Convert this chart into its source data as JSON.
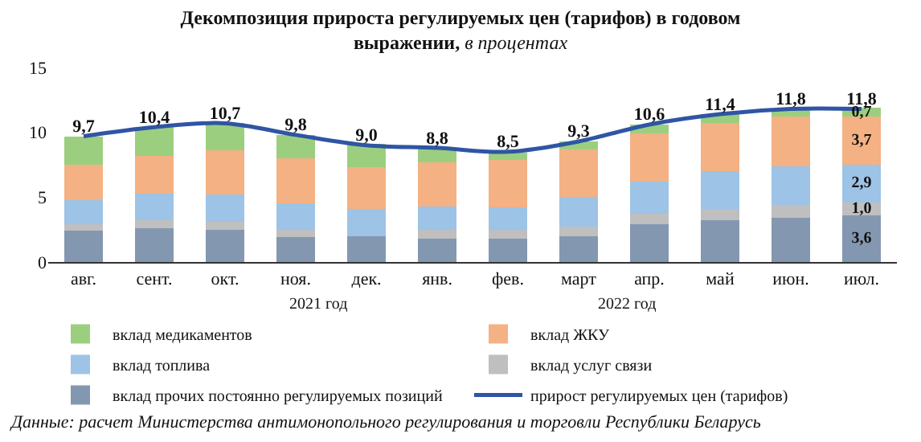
{
  "chart_data": {
    "type": "bar",
    "stacked": true,
    "title": "Декомпозиция прироста регулируемых цен (тарифов) в годовом выражении,",
    "subtitle": "в процентах",
    "categories": [
      "авг.",
      "сент.",
      "окт.",
      "ноя.",
      "дек.",
      "янв.",
      "фев.",
      "март",
      "апр.",
      "май",
      "июн.",
      "июл."
    ],
    "series": [
      {
        "name": "вклад прочих постоянно регулируемых позиций",
        "color": "#8497b0",
        "values": [
          2.4,
          2.6,
          2.5,
          1.9,
          2.0,
          1.8,
          1.8,
          2.0,
          2.9,
          3.2,
          3.4,
          3.6
        ],
        "value_labels": [
          null,
          null,
          null,
          null,
          null,
          null,
          null,
          null,
          null,
          null,
          null,
          "3,6"
        ]
      },
      {
        "name": "вклад услуг связи",
        "color": "#bfbfbf",
        "values": [
          0.5,
          0.6,
          0.6,
          0.6,
          null,
          0.7,
          0.7,
          0.7,
          0.8,
          0.9,
          1.0,
          1.0
        ],
        "value_labels": [
          null,
          null,
          null,
          null,
          null,
          null,
          null,
          null,
          null,
          null,
          null,
          "1,0"
        ]
      },
      {
        "name": "вклад топлива",
        "color": "#9dc3e6",
        "values": [
          1.9,
          2.1,
          2.1,
          2.0,
          2.1,
          1.8,
          1.7,
          2.3,
          2.5,
          2.9,
          3.0,
          2.9
        ],
        "value_labels": [
          null,
          null,
          null,
          null,
          null,
          null,
          null,
          null,
          null,
          null,
          null,
          "2,9"
        ]
      },
      {
        "name": "вклад ЖКУ",
        "color": "#f4b183",
        "values": [
          2.7,
          2.9,
          3.4,
          3.5,
          3.2,
          3.4,
          3.7,
          3.7,
          3.7,
          3.7,
          3.8,
          3.7
        ],
        "value_labels": [
          null,
          null,
          null,
          null,
          null,
          null,
          null,
          null,
          null,
          null,
          null,
          "3,7"
        ]
      },
      {
        "name": "вклад медикаментов",
        "color": "#9bcf7f",
        "values": [
          2.2,
          2.2,
          2.1,
          1.8,
          1.8,
          1.1,
          0.5,
          0.6,
          0.7,
          0.7,
          0.6,
          0.7
        ],
        "value_labels": [
          null,
          null,
          null,
          null,
          null,
          null,
          null,
          null,
          null,
          null,
          null,
          "0,7"
        ]
      },
      {
        "name": "прирост регулируемых цен (тарифов)",
        "type": "line",
        "color": "#2f55a4",
        "values": [
          9.7,
          10.4,
          10.7,
          9.8,
          9.0,
          8.8,
          8.5,
          9.3,
          10.6,
          11.4,
          11.8,
          11.8
        ],
        "value_labels": [
          "9,7",
          "10,4",
          "10,7",
          "9,8",
          "9,0",
          "8,8",
          "8,5",
          "9,3",
          "10,6",
          "11,4",
          "11,8",
          "11,8"
        ]
      }
    ],
    "ylim": [
      0,
      15
    ],
    "yticks": [
      0,
      5,
      10,
      15
    ],
    "legend": "bottom",
    "annotations": [
      "2021 год",
      "2022 год",
      "Данные: расчет Министерства антимонопольного регулирования и торговли Республики Беларусь"
    ]
  }
}
